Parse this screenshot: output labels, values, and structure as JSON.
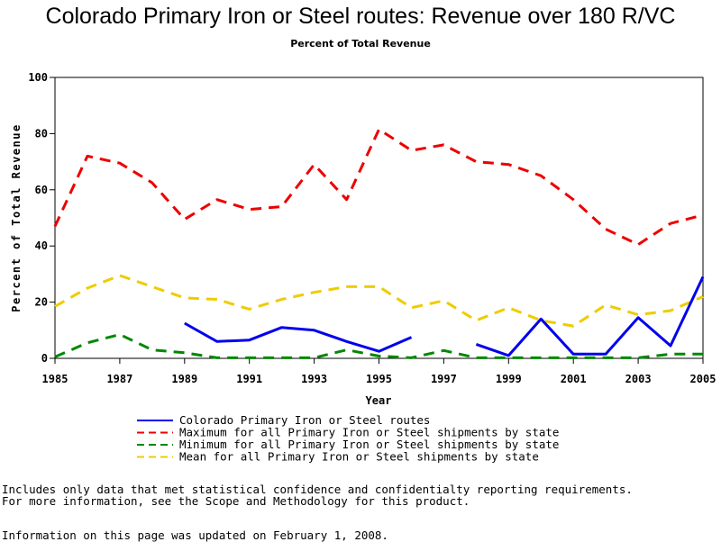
{
  "header": {
    "title": "Colorado Primary Iron or Steel routes: Revenue over 180 R/VC",
    "subtitle": "Percent of Total Revenue"
  },
  "notes": {
    "line1": "Includes only data that met statistical confidence and confidentialty reporting requirements.",
    "line2": "For more information, see the Scope and Methodology for this product.",
    "updated": "Information on this page was updated on February 1, 2008."
  },
  "chart_data": {
    "type": "line",
    "xlabel": "Year",
    "ylabel": "Percent of Total Revenue",
    "xlim": [
      1985,
      2005
    ],
    "ylim": [
      0,
      100
    ],
    "x_ticks": [
      1985,
      1987,
      1989,
      1991,
      1993,
      1995,
      1997,
      1999,
      2001,
      2003,
      2005
    ],
    "y_ticks": [
      0,
      20,
      40,
      60,
      80,
      100
    ],
    "grid": false,
    "legend_position": "bottom",
    "x": [
      1985,
      1986,
      1987,
      1988,
      1989,
      1990,
      1991,
      1992,
      1993,
      1994,
      1995,
      1996,
      1997,
      1998,
      1999,
      2000,
      2001,
      2002,
      2003,
      2004,
      2005
    ],
    "series": [
      {
        "name": "Colorado Primary Iron or Steel routes",
        "color": "#0000ee",
        "style": "solid",
        "values": [
          null,
          null,
          null,
          null,
          12.5,
          6,
          6.5,
          11,
          10,
          6,
          2.5,
          7.5,
          null,
          5,
          1,
          14,
          1.5,
          1.5,
          14.5,
          4.5,
          29
        ]
      },
      {
        "name": "Maximum for all Primary Iron or Steel shipments by state",
        "color": "#ee0000",
        "style": "dashed",
        "values": [
          47,
          72,
          69.5,
          62.5,
          49.5,
          56.5,
          53,
          54,
          69,
          56.5,
          81.5,
          74,
          76,
          70,
          69,
          65,
          56.5,
          46,
          40.5,
          48,
          51
        ]
      },
      {
        "name": "Minimum for all Primary Iron or Steel shipments by state",
        "color": "#008800",
        "style": "dashed",
        "values": [
          0.5,
          5.5,
          8.5,
          3,
          2,
          0.2,
          0.2,
          0.2,
          0.2,
          3,
          0.8,
          0.2,
          2.8,
          0.2,
          0.2,
          0.2,
          0.2,
          0.2,
          0.2,
          1.5,
          1.5
        ]
      },
      {
        "name": "Mean for all Primary Iron or Steel shipments by state",
        "color": "#eecc00",
        "style": "dashed",
        "values": [
          18.5,
          25,
          29.5,
          25.5,
          21.5,
          21,
          17.5,
          21,
          23.5,
          25.5,
          25.5,
          18,
          20.5,
          13.5,
          18,
          13.5,
          11.5,
          19,
          15.5,
          17,
          22
        ]
      }
    ]
  }
}
